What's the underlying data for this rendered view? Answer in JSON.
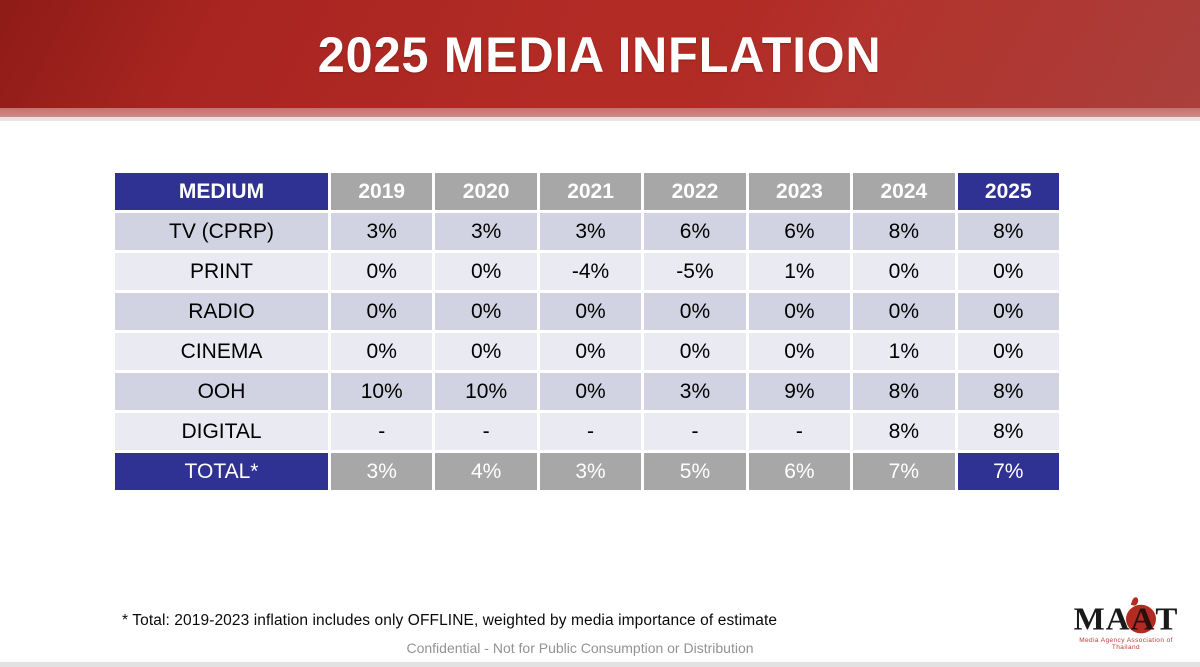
{
  "slide": {
    "title": "2025 MEDIA INFLATION",
    "footnote": "* Total: 2019-2023 inflation includes only OFFLINE, weighted by media importance of estimate",
    "confidential": "Confidential - Not for Public Consumption or Distribution"
  },
  "table": {
    "columns": [
      "MEDIUM",
      "2019",
      "2020",
      "2021",
      "2022",
      "2023",
      "2024",
      "2025"
    ],
    "rows": [
      {
        "medium": "TV (CPRP)",
        "values": [
          "3%",
          "3%",
          "3%",
          "6%",
          "6%",
          "8%",
          "8%"
        ]
      },
      {
        "medium": "PRINT",
        "values": [
          "0%",
          "0%",
          "-4%",
          "-5%",
          "1%",
          "0%",
          "0%"
        ]
      },
      {
        "medium": "RADIO",
        "values": [
          "0%",
          "0%",
          "0%",
          "0%",
          "0%",
          "0%",
          "0%"
        ]
      },
      {
        "medium": "CINEMA",
        "values": [
          "0%",
          "0%",
          "0%",
          "0%",
          "0%",
          "1%",
          "0%"
        ]
      },
      {
        "medium": "OOH",
        "values": [
          "10%",
          "10%",
          "0%",
          "3%",
          "9%",
          "8%",
          "8%"
        ]
      },
      {
        "medium": "DIGITAL",
        "values": [
          "-",
          "-",
          "-",
          "-",
          "-",
          "8%",
          "8%"
        ]
      }
    ],
    "total_row": {
      "medium": "TOTAL*",
      "values": [
        "3%",
        "4%",
        "3%",
        "5%",
        "6%",
        "7%",
        "7%"
      ]
    }
  },
  "logo": {
    "part1": "MA",
    "part2": "A",
    "part3": "T",
    "caption": "Media Agency Association of Thailand"
  },
  "colors": {
    "banner_red": "#b02a24",
    "navy": "#2f3193",
    "header_gray": "#a7a7a7",
    "row_dark": "#d2d3e2",
    "row_light": "#e9eaf2",
    "strip_pink": "#c4736f"
  }
}
